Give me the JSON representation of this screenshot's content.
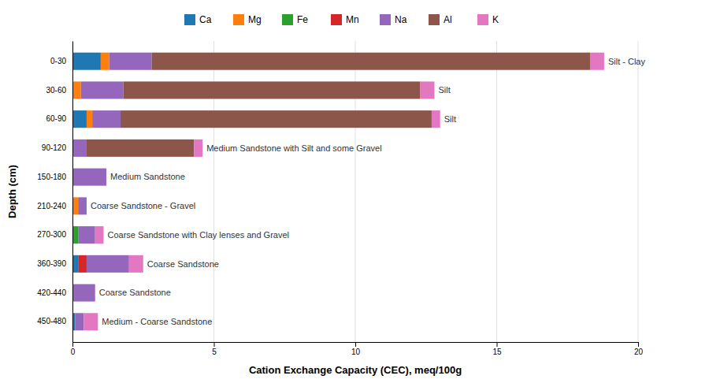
{
  "chart_data": {
    "type": "bar",
    "orientation": "horizontal",
    "stacked": true,
    "xlabel": "Cation Exchange Capacity (CEC), meq/100g",
    "ylabel": "Depth (cm)",
    "categories": [
      "0-30",
      "30-60",
      "60-90",
      "90-120",
      "150-180",
      "210-240",
      "270-300",
      "360-390",
      "420-440",
      "450-480"
    ],
    "series": [
      {
        "name": "Ca",
        "values": [
          1.0,
          0.0,
          0.5,
          0.0,
          0.0,
          0.0,
          0.0,
          0.2,
          0.0,
          0.1
        ]
      },
      {
        "name": "Mg",
        "values": [
          0.3,
          0.3,
          0.2,
          0.0,
          0.0,
          0.2,
          0.0,
          0.0,
          0.0,
          0.0
        ]
      },
      {
        "name": "Fe",
        "values": [
          0.0,
          0.0,
          0.0,
          0.0,
          0.0,
          0.0,
          0.2,
          0.0,
          0.0,
          0.0
        ]
      },
      {
        "name": "Mn",
        "values": [
          0.0,
          0.0,
          0.0,
          0.0,
          0.0,
          0.0,
          0.0,
          0.3,
          0.0,
          0.0
        ]
      },
      {
        "name": "Na",
        "values": [
          1.5,
          1.5,
          1.0,
          0.5,
          1.2,
          0.3,
          0.6,
          1.5,
          0.8,
          0.3
        ]
      },
      {
        "name": "Al",
        "values": [
          15.5,
          10.5,
          11.0,
          3.8,
          0.0,
          0.0,
          0.0,
          0.0,
          0.0,
          0.0
        ]
      },
      {
        "name": "K",
        "values": [
          0.5,
          0.5,
          0.3,
          0.3,
          0.0,
          0.0,
          0.3,
          0.5,
          0.0,
          0.5
        ]
      }
    ],
    "annotations": [
      "Silt - Clay",
      "Silt",
      "Silt",
      "Medium Sandstone with Silt and some Gravel",
      "Medium Sandstone",
      "Coarse Sandstone - Gravel",
      "Coarse Sandstone with Clay lenses and Gravel",
      "Coarse Sandstone",
      "Coarse Sandstone",
      "Medium - Coarse Sandstone"
    ],
    "xlim": [
      0,
      20
    ],
    "xticks": [
      0,
      5,
      10,
      15,
      20
    ],
    "grid": true,
    "legend": "top"
  }
}
